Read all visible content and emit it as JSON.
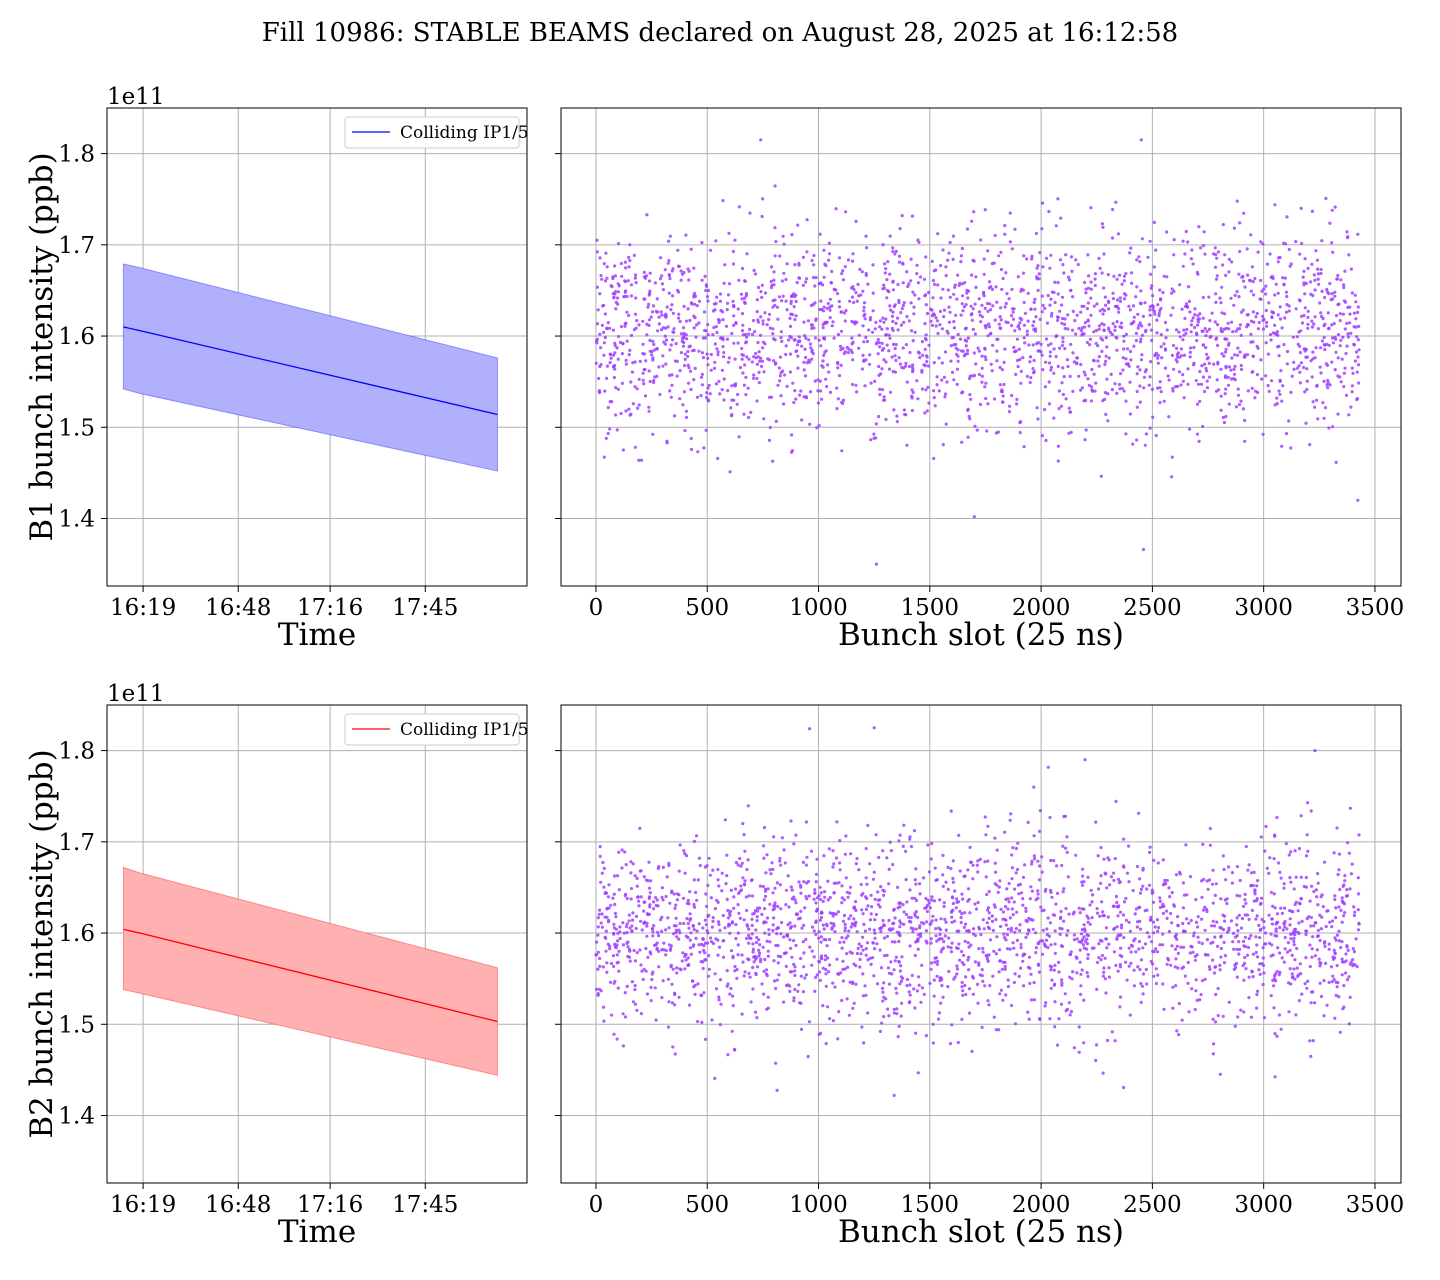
{
  "figure": {
    "title": "Fill 10986: STABLE BEAMS declared on August 28, 2025 at 16:12:58"
  },
  "colors": {
    "b1_line": "#0000ff",
    "b1_fill": "#b0b0fc",
    "b2_line": "#ff0000",
    "b2_fill": "#ffb0b0",
    "scatter": "#a040ff",
    "grid": "#b0b0b0"
  },
  "chart_data": [
    {
      "id": "b1-time",
      "type": "area",
      "ylabel": "B1 bunch intensity (ppb)",
      "xlabel": "Time",
      "y_scale_label": "1e11",
      "xlim": [
        "16:08",
        "18:16"
      ],
      "ylim": [
        1.326,
        1.85
      ],
      "x_ticks": [
        "16:19",
        "16:48",
        "17:16",
        "17:45"
      ],
      "y_ticks": [
        1.4,
        1.5,
        1.6,
        1.7,
        1.8
      ],
      "grid": true,
      "legend": {
        "position": "top-right",
        "entries": [
          "Colliding IP1/5"
        ]
      },
      "series": [
        {
          "name": "Colliding IP1/5",
          "x": [
            "16:13",
            "16:18",
            "18:07"
          ],
          "mean": [
            1.61,
            1.606,
            1.514
          ],
          "upper": [
            1.679,
            1.675,
            1.576
          ],
          "lower": [
            1.542,
            1.537,
            1.452
          ]
        }
      ]
    },
    {
      "id": "b1-slot",
      "type": "scatter",
      "xlabel": "Bunch slot (25 ns)",
      "xlim": [
        -157,
        3617
      ],
      "ylim": [
        1.326,
        1.85
      ],
      "x_ticks": [
        0,
        500,
        1000,
        1500,
        2000,
        2500,
        3000,
        3500
      ],
      "y_ticks": [
        1.4,
        1.5,
        1.6,
        1.7,
        1.8
      ],
      "grid": true,
      "x_min": 0,
      "x_max": 3430,
      "n_points": 2400,
      "y_mean": 1.605,
      "y_sd": 0.063,
      "notable_points": [
        [
          740,
          1.815
        ],
        [
          2450,
          1.815
        ],
        [
          1260,
          1.35
        ],
        [
          2460,
          1.366
        ],
        [
          1700,
          1.402
        ]
      ]
    },
    {
      "id": "b2-time",
      "type": "area",
      "ylabel": "B2 bunch intensity (ppb)",
      "xlabel": "Time",
      "y_scale_label": "1e11",
      "xlim": [
        "16:08",
        "18:16"
      ],
      "ylim": [
        1.326,
        1.85
      ],
      "x_ticks": [
        "16:19",
        "16:48",
        "17:16",
        "17:45"
      ],
      "y_ticks": [
        1.4,
        1.5,
        1.6,
        1.7,
        1.8
      ],
      "grid": true,
      "legend": {
        "position": "top-right",
        "entries": [
          "Colliding IP1/5"
        ]
      },
      "series": [
        {
          "name": "Colliding IP1/5",
          "x": [
            "16:13",
            "16:18",
            "18:07"
          ],
          "mean": [
            1.604,
            1.6,
            1.503
          ],
          "upper": [
            1.672,
            1.666,
            1.562
          ],
          "lower": [
            1.538,
            1.534,
            1.444
          ]
        }
      ]
    },
    {
      "id": "b2-slot",
      "type": "scatter",
      "xlabel": "Bunch slot (25 ns)",
      "xlim": [
        -157,
        3617
      ],
      "ylim": [
        1.326,
        1.85
      ],
      "x_ticks": [
        0,
        500,
        1000,
        1500,
        2000,
        2500,
        3000,
        3500
      ],
      "y_ticks": [
        1.4,
        1.5,
        1.6,
        1.7,
        1.8
      ],
      "grid": true,
      "x_min": 0,
      "x_max": 3430,
      "n_points": 2400,
      "y_mean": 1.6,
      "y_sd": 0.06,
      "notable_points": [
        [
          960,
          1.824
        ],
        [
          1250,
          1.825
        ],
        [
          3230,
          1.8
        ],
        [
          1340,
          1.422
        ]
      ]
    }
  ]
}
